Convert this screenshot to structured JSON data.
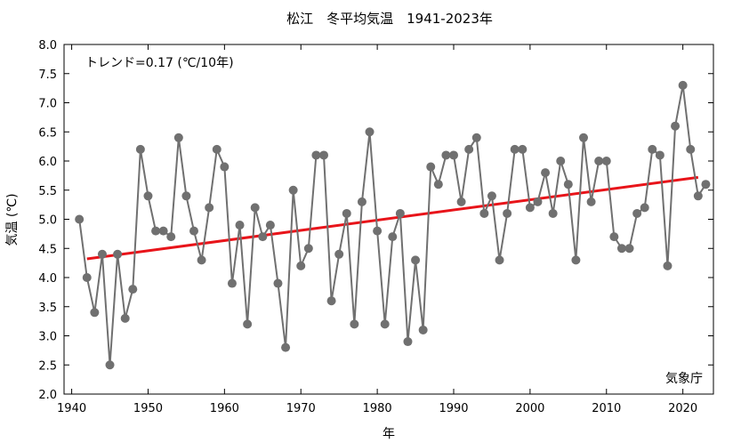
{
  "chart_data": {
    "type": "line",
    "title": "松江　冬平均気温　1941-2023年",
    "xlabel": "年",
    "ylabel": "気温 (℃)",
    "xlim": [
      1939,
      2024
    ],
    "ylim": [
      2.0,
      8.0
    ],
    "x_ticks": [
      "1940",
      "1950",
      "1960",
      "1970",
      "1980",
      "1990",
      "2000",
      "2010",
      "2020"
    ],
    "y_ticks": [
      "2.0",
      "2.5",
      "3.0",
      "3.5",
      "4.0",
      "4.5",
      "5.0",
      "5.5",
      "6.0",
      "6.5",
      "7.0",
      "7.5",
      "8.0"
    ],
    "grid": false,
    "trend_annotation": "トレンド=0.17 (℃/10年)",
    "source_label": "気象庁",
    "colors": {
      "series": "#707070",
      "trend": "#e8141a"
    },
    "series": [
      {
        "x": [
          1941,
          1942,
          1943,
          1944,
          1945,
          1946,
          1947,
          1948,
          1949,
          1950,
          1951,
          1952,
          1953,
          1954,
          1955,
          1956,
          1957,
          1958,
          1959,
          1960,
          1961,
          1962,
          1963,
          1964,
          1965,
          1966,
          1967,
          1968,
          1969,
          1970,
          1971,
          1972,
          1973,
          1974,
          1975,
          1976,
          1977,
          1978,
          1979,
          1980,
          1981,
          1982,
          1983,
          1984,
          1985,
          1986,
          1987,
          1988,
          1989,
          1990,
          1991,
          1992,
          1993,
          1994,
          1995,
          1996,
          1997,
          1998,
          1999,
          2000,
          2001,
          2002,
          2003,
          2004,
          2005,
          2006,
          2007,
          2008,
          2009,
          2010,
          2011,
          2012,
          2013,
          2014,
          2015,
          2016,
          2017,
          2018,
          2019,
          2020,
          2021,
          2022,
          2023
        ],
        "values": [
          5.0,
          4.0,
          3.4,
          4.4,
          2.5,
          4.4,
          3.3,
          3.8,
          6.2,
          5.4,
          4.8,
          4.8,
          4.7,
          6.4,
          5.4,
          4.8,
          4.3,
          5.2,
          6.2,
          5.9,
          3.9,
          4.9,
          3.2,
          5.2,
          4.7,
          4.9,
          3.9,
          2.8,
          5.5,
          4.2,
          4.5,
          6.1,
          6.1,
          3.6,
          4.4,
          5.1,
          3.2,
          5.3,
          6.5,
          4.8,
          3.2,
          4.7,
          5.1,
          2.9,
          4.3,
          3.1,
          5.9,
          5.6,
          6.1,
          6.1,
          5.3,
          6.2,
          6.4,
          5.1,
          5.4,
          4.3,
          5.1,
          6.2,
          6.2,
          5.2,
          5.3,
          5.8,
          5.1,
          6.0,
          5.6,
          4.3,
          6.4,
          5.3,
          6.0,
          6.0,
          4.7,
          4.5,
          4.5,
          5.1,
          5.2,
          6.2,
          6.1,
          4.2,
          6.6,
          7.3,
          6.2,
          5.4,
          5.6
        ]
      }
    ],
    "trend": {
      "x": [
        1942,
        2022
      ],
      "y": [
        4.32,
        5.72
      ]
    }
  }
}
